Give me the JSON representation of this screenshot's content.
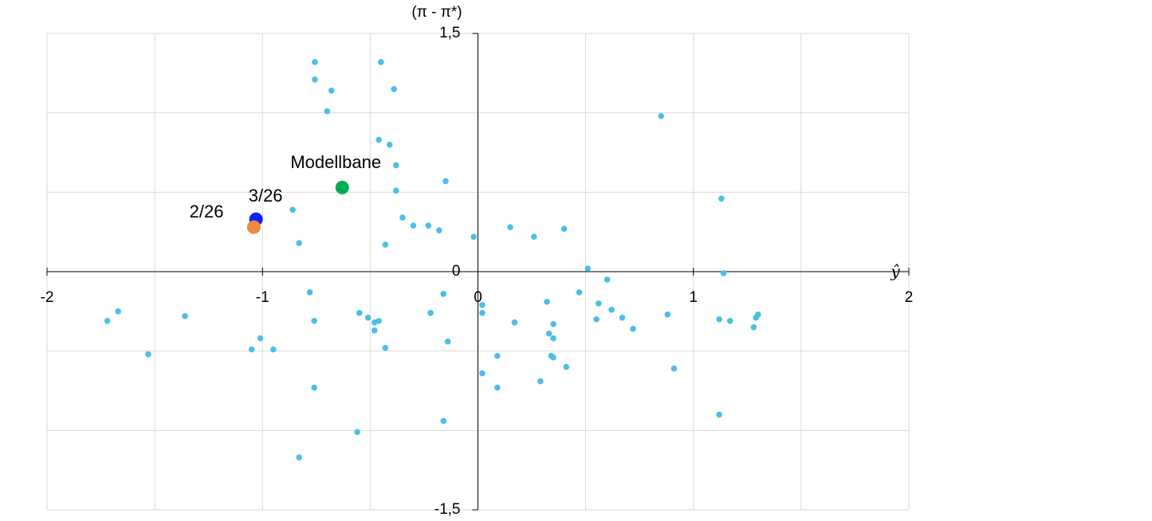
{
  "chart_data": {
    "type": "scatter",
    "y_label": "(π - π*)",
    "x_label": "ŷ",
    "xlim": [
      -2,
      2
    ],
    "ylim": [
      -1.5,
      1.5
    ],
    "xticks": [
      -2,
      -1,
      0,
      1,
      2
    ],
    "yticks": [
      {
        "value": -1.5,
        "label": "-1,5"
      },
      0,
      {
        "value": 1.5,
        "label": "1,5"
      }
    ],
    "xgrid": [
      -2,
      -1.5,
      -1,
      -0.5,
      0,
      0.5,
      1,
      1.5,
      2
    ],
    "ygrid": [
      -1.5,
      -1,
      -0.5,
      0,
      0.5,
      1,
      1.5
    ],
    "grid": true,
    "series": [
      {
        "color": "#4cbfe6",
        "x": [
          -0.757,
          -0.45,
          -0.757,
          -0.68,
          -0.39,
          -0.7,
          -0.46,
          -0.41,
          -0.38,
          -0.15,
          -0.38,
          -0.86,
          -0.35,
          -0.3,
          -0.23,
          -0.18,
          -0.02,
          -0.83,
          -0.43,
          0.15,
          0.26,
          0.4,
          0.85,
          1.13,
          0.51,
          1.14,
          0.6,
          -0.78,
          -0.16,
          0.47,
          0.32,
          0.02,
          0.56,
          0.02,
          -1.67,
          -1.72,
          -1.36,
          -0.76,
          -0.55,
          -0.51,
          -0.46,
          -0.48,
          -0.48,
          -0.22,
          0.17,
          0.35,
          0.62,
          0.55,
          0.67,
          0.72,
          0.88,
          1.12,
          1.17,
          1.3,
          1.29,
          1.28,
          -1.01,
          -1.05,
          -0.95,
          -1.53,
          -0.43,
          -0.14,
          0.33,
          0.35,
          0.09,
          0.34,
          0.35,
          0.41,
          0.91,
          0.02,
          0.29,
          0.09,
          -0.76,
          1.12,
          -0.16,
          -0.56,
          -0.83
        ],
        "values": [
          1.32,
          1.32,
          1.21,
          1.14,
          1.15,
          1.01,
          0.83,
          0.8,
          0.67,
          0.57,
          0.51,
          0.39,
          0.34,
          0.29,
          0.29,
          0.26,
          0.22,
          0.18,
          0.17,
          0.28,
          0.22,
          0.27,
          0.98,
          0.46,
          0.02,
          -0.01,
          -0.05,
          -0.13,
          -0.14,
          -0.13,
          -0.19,
          -0.21,
          -0.2,
          -0.26,
          -0.25,
          -0.31,
          -0.28,
          -0.31,
          -0.26,
          -0.29,
          -0.31,
          -0.32,
          -0.37,
          -0.26,
          -0.32,
          -0.33,
          -0.24,
          -0.3,
          -0.29,
          -0.36,
          -0.27,
          -0.3,
          -0.31,
          -0.27,
          -0.29,
          -0.35,
          -0.42,
          -0.49,
          -0.49,
          -0.52,
          -0.48,
          -0.44,
          -0.39,
          -0.42,
          -0.53,
          -0.53,
          -0.54,
          -0.6,
          -0.61,
          -0.64,
          -0.69,
          -0.73,
          -0.73,
          -0.9,
          -0.94,
          -1.01,
          -1.17
        ]
      },
      {
        "name": "Modellbane",
        "color": "#00b050",
        "x": [
          -0.63
        ],
        "values": [
          0.53
        ]
      },
      {
        "name": "3/26",
        "color": "#0b24fb",
        "x": [
          -1.03
        ],
        "values": [
          0.33
        ]
      },
      {
        "name": "2/26",
        "color": "#ed8a3f",
        "x": [
          -1.04
        ],
        "values": [
          0.28
        ]
      }
    ]
  }
}
